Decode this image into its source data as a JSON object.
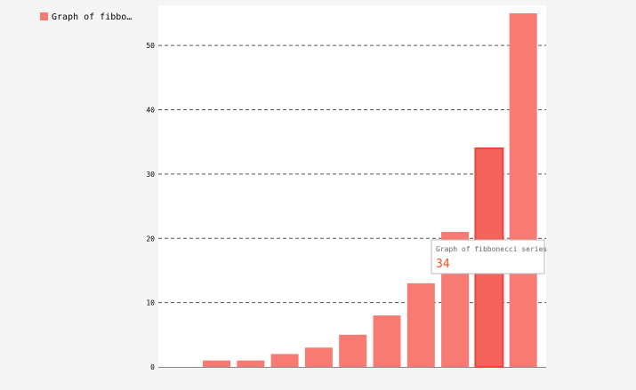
{
  "legend": {
    "label": "Graph of fibbo…",
    "color": "#f77a73"
  },
  "tooltip": {
    "title": "Graph of fibbonecci series",
    "value": "34",
    "value_color": "#e8453c"
  },
  "colors": {
    "bar": "#f77a73",
    "bar_active": "#f4645c",
    "bar_active_border": "#e8453c",
    "plot_bg": "#ffffff",
    "page_bg": "#f5f5f5",
    "grid": "#555555"
  },
  "chart_data": {
    "type": "bar",
    "categories": [
      "",
      "",
      "",
      "",
      "",
      "",
      "",
      "",
      "",
      ""
    ],
    "values": [
      1,
      1,
      2,
      3,
      5,
      8,
      13,
      21,
      34,
      55
    ],
    "active_index": 8,
    "title": "",
    "xlabel": "",
    "ylabel": "",
    "ylim": [
      0,
      55
    ],
    "yticks": [
      0,
      10,
      20,
      30,
      40,
      50
    ],
    "ytick_labels": [
      "0",
      "10",
      "20",
      "30",
      "40",
      "50"
    ],
    "grid": "horizontal-dashed",
    "legend_position": "top-left",
    "series": [
      {
        "name": "Graph of fibbonecci series",
        "values": [
          1,
          1,
          2,
          3,
          5,
          8,
          13,
          21,
          34,
          55
        ]
      }
    ]
  }
}
